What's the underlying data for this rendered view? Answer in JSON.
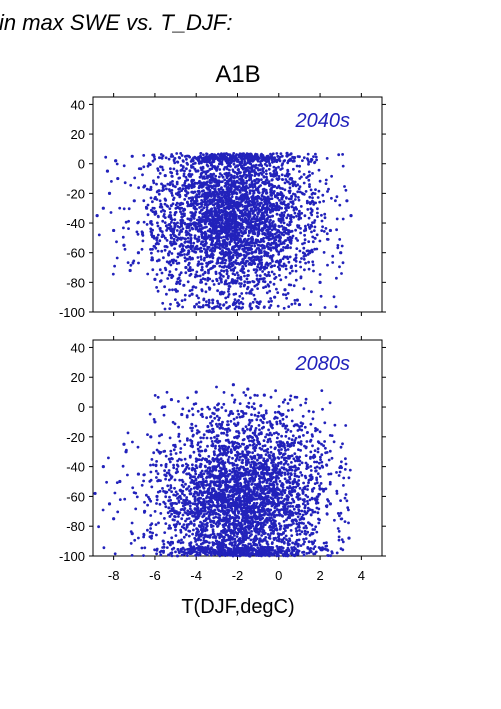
{
  "figure": {
    "header": "in max SWE vs. T_DJF:",
    "scenario": "A1B",
    "xlabel": "T(DJF,degC)"
  },
  "chart_data": [
    {
      "type": "scatter",
      "panel_label": "2040s",
      "xlim": [
        -9,
        5
      ],
      "ylim": [
        -100,
        45
      ],
      "xticks": [
        -8,
        -6,
        -4,
        -2,
        0,
        2,
        4
      ],
      "yticks": [
        -100,
        -80,
        -60,
        -40,
        -20,
        0,
        20,
        40
      ],
      "point_color": "#2222bb",
      "point_density": "dense cloud (~4000 points) spanning x from about -9 to 3.5 and y from about -98 to 10, densest between x -4 and 0 and y -60 to 5, upper edge near y 7",
      "series": [
        {
          "x": [
            -8.8,
            -8.5,
            -8.2,
            -8.0,
            -7.8,
            -7.5,
            -7.2,
            -7.0,
            -6.8,
            -6.5,
            -6.2,
            -6.0,
            -5.8,
            -5.5,
            -5.2,
            -5.0,
            -4.8,
            -4.5,
            -4.2,
            -4.0,
            -3.8,
            -3.5,
            -3.2,
            -3.0,
            -2.8,
            -2.5,
            -2.2,
            -2.0,
            -1.8,
            -1.5,
            -1.2,
            -1.0,
            -0.8,
            -0.5,
            -0.2,
            0.0,
            0.3,
            0.6,
            1.0,
            1.5,
            2.0,
            2.5,
            3.0,
            3.3,
            3.5,
            -8.3,
            -7.9,
            -7.1,
            -6.4,
            -5.9,
            -5.3,
            -4.6,
            -3.9,
            -3.3,
            -2.7,
            -2.1,
            -1.6,
            -1.1,
            -0.6,
            -0.1,
            0.4,
            0.9,
            -3.6,
            -2.4,
            -1.3
          ],
          "y": [
            -35,
            -30,
            -20,
            -45,
            -10,
            -55,
            -72,
            -25,
            -60,
            -15,
            -40,
            -78,
            -65,
            -8,
            -50,
            -85,
            -30,
            -70,
            -88,
            -5,
            -45,
            -60,
            -92,
            -20,
            -75,
            -35,
            -95,
            -50,
            -10,
            -80,
            -65,
            -97,
            -40,
            -25,
            -90,
            -55,
            -85,
            -70,
            -95,
            -60,
            -80,
            -45,
            -60,
            -25,
            -35,
            -5,
            2,
            5,
            -30,
            -50,
            -75,
            -82,
            3,
            -15,
            6,
            -40,
            -5,
            4,
            -60,
            -30,
            7,
            -92,
            -55,
            -70,
            -85
          ]
        }
      ]
    },
    {
      "type": "scatter",
      "panel_label": "2080s",
      "xlim": [
        -9,
        5
      ],
      "ylim": [
        -100,
        45
      ],
      "xticks": [
        -8,
        -6,
        -4,
        -2,
        0,
        2,
        4
      ],
      "yticks": [
        -100,
        -80,
        -60,
        -40,
        -20,
        0,
        20,
        40
      ],
      "point_color": "#2222bb",
      "point_density": "dense cloud (~4000 points) spanning x from about -9 to 3.5 and y from about -100 to 17, densest between x -3 and 1 and y -100 to -40, upper edge near y 15",
      "series": [
        {
          "x": [
            -8.9,
            -8.5,
            -8.2,
            -8.0,
            -7.7,
            -7.4,
            -7.1,
            -6.8,
            -6.5,
            -6.2,
            -5.9,
            -5.6,
            -5.3,
            -5.0,
            -4.7,
            -4.4,
            -4.1,
            -3.8,
            -3.5,
            -3.2,
            -2.9,
            -2.6,
            -2.3,
            -2.0,
            -1.7,
            -1.4,
            -1.1,
            -0.8,
            -0.5,
            -0.2,
            0.1,
            0.4,
            0.8,
            1.2,
            1.6,
            2.0,
            2.5,
            3.0,
            3.4,
            -7.5,
            -6.0,
            -5.2,
            -4.0,
            -3.0,
            -2.2,
            -1.5,
            -0.7,
            0.2,
            1.0,
            -1.8,
            -2.8
          ],
          "y": [
            -58,
            -40,
            -65,
            -75,
            -50,
            -30,
            -85,
            -45,
            -70,
            -20,
            -60,
            -90,
            -35,
            -80,
            -5,
            -65,
            -95,
            -40,
            -75,
            -15,
            -55,
            -98,
            -30,
            -85,
            -60,
            -100,
            -45,
            -90,
            -70,
            -98,
            -80,
            -60,
            -92,
            -75,
            -85,
            -55,
            -65,
            -40,
            -88,
            -25,
            -10,
            5,
            10,
            -2,
            15,
            12,
            8,
            -5,
            -20,
            -95,
            -70
          ]
        }
      ]
    }
  ]
}
